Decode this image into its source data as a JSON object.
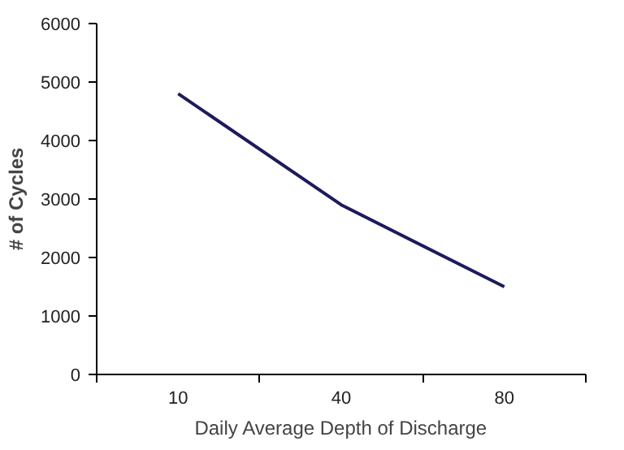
{
  "chart_data": {
    "type": "line",
    "xlabel": "Daily Average Depth of Discharge",
    "ylabel": "# of Cycles",
    "categories": [
      "10",
      "40",
      "80"
    ],
    "series": [
      {
        "color": "#1c1c5c",
        "values": [
          4800,
          2900,
          1500
        ]
      }
    ],
    "ylim": [
      0,
      6000
    ],
    "yticks": [
      0,
      1000,
      2000,
      3000,
      4000,
      5000,
      6000
    ],
    "grid": false,
    "marker": "none",
    "line_style": "solid"
  }
}
